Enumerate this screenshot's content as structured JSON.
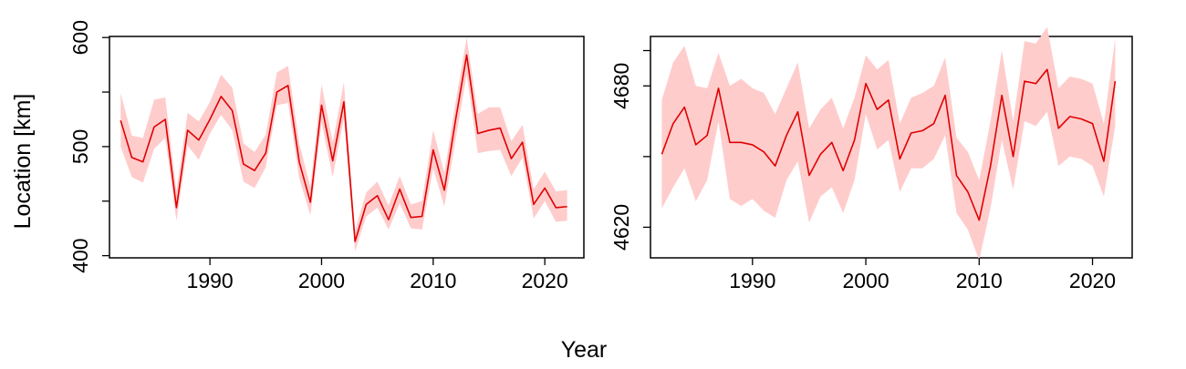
{
  "figure": {
    "xlabel": "Year",
    "ylabel": "Location [km]"
  },
  "chart_data": [
    {
      "type": "line",
      "title": "",
      "xlabel": "Year",
      "ylabel": "Location [km]",
      "xlim": [
        1981,
        2023.5
      ],
      "ylim": [
        398,
        601
      ],
      "x_ticks": [
        1990,
        2000,
        2010,
        2020
      ],
      "x_tick_labels": [
        "1990",
        "2000",
        "2010",
        "2020"
      ],
      "y_ticks": [
        400,
        500,
        600
      ],
      "y_tick_labels": [
        "400",
        "500",
        "600"
      ],
      "y_minor_ticks": [
        450,
        550
      ],
      "grid": false,
      "line_color": "#e00000",
      "band_color": "#ffcccc",
      "series": [
        {
          "x": [
            1982,
            1983,
            1984,
            1985,
            1986,
            1987,
            1988,
            1989,
            1990,
            1991,
            1992,
            1993,
            1994,
            1995,
            1996,
            1997,
            1998,
            1999,
            2000,
            2001,
            2002,
            2003,
            2004,
            2005,
            2006,
            2007,
            2008,
            2009,
            2010,
            2011,
            2012,
            2013,
            2014,
            2015,
            2016,
            2017,
            2018,
            2019,
            2020,
            2021,
            2022
          ],
          "y": [
            524,
            490,
            486,
            518,
            525,
            444,
            515,
            506,
            525,
            546,
            533,
            484,
            478,
            494,
            550,
            556,
            486,
            449,
            538,
            487,
            541,
            413,
            447,
            455,
            433,
            461,
            435,
            436,
            497,
            460,
            524,
            584,
            512,
            515,
            517,
            489,
            504,
            447,
            462,
            444,
            445
          ],
          "lower": [
            500,
            472,
            467,
            498,
            508,
            432,
            501,
            488,
            512,
            529,
            515,
            468,
            462,
            481,
            538,
            540,
            471,
            437,
            522,
            472,
            526,
            404,
            436,
            444,
            424,
            448,
            425,
            424,
            480,
            445,
            506,
            566,
            494,
            496,
            497,
            473,
            490,
            434,
            450,
            431,
            432
          ],
          "upper": [
            549,
            510,
            508,
            543,
            545,
            459,
            531,
            523,
            541,
            566,
            554,
            503,
            495,
            511,
            568,
            574,
            503,
            463,
            557,
            504,
            559,
            423,
            458,
            468,
            446,
            473,
            447,
            450,
            515,
            476,
            540,
            600,
            530,
            536,
            536,
            505,
            520,
            461,
            477,
            459,
            460
          ]
        }
      ]
    },
    {
      "type": "line",
      "title": "",
      "xlabel": "Year",
      "ylabel": "Location [km]",
      "xlim": [
        1981,
        2023.5
      ],
      "ylim": [
        4607,
        4701
      ],
      "x_ticks": [
        1990,
        2000,
        2010,
        2020
      ],
      "x_tick_labels": [
        "1990",
        "2000",
        "2010",
        "2020"
      ],
      "y_ticks": [
        4620,
        4680
      ],
      "y_tick_labels": [
        "4620",
        "4680"
      ],
      "y_minor_ticks": [
        4650,
        4695
      ],
      "grid": false,
      "line_color": "#e00000",
      "band_color": "#ffcccc",
      "series": [
        {
          "x": [
            1982,
            1983,
            1984,
            1985,
            1986,
            1987,
            1988,
            1989,
            1990,
            1991,
            1992,
            1993,
            1994,
            1995,
            1996,
            1997,
            1998,
            1999,
            2000,
            2001,
            2002,
            2003,
            2004,
            2005,
            2006,
            2007,
            2008,
            2009,
            2010,
            2011,
            2012,
            2013,
            2014,
            2015,
            2016,
            2017,
            2018,
            2019,
            2020,
            2021,
            2022
          ],
          "y": [
            4651,
            4664,
            4671,
            4655,
            4659,
            4679,
            4656,
            4656,
            4655,
            4652,
            4646,
            4659,
            4669,
            4642,
            4651,
            4656,
            4644,
            4657,
            4681,
            4670,
            4674,
            4649,
            4660,
            4661,
            4664,
            4676,
            4642,
            4635,
            4623,
            4646,
            4676,
            4650,
            4682,
            4681,
            4687,
            4662,
            4667,
            4666,
            4664,
            4648,
            4682
          ],
          "lower": [
            4628,
            4637,
            4645,
            4631,
            4640,
            4665,
            4632,
            4629,
            4632,
            4627,
            4624,
            4640,
            4648,
            4622,
            4633,
            4637,
            4626,
            4640,
            4668,
            4653,
            4657,
            4635,
            4645,
            4645,
            4649,
            4659,
            4626,
            4619,
            4606,
            4628,
            4657,
            4636,
            4665,
            4663,
            4669,
            4646,
            4650,
            4649,
            4646,
            4633,
            4663
          ],
          "upper": [
            4674,
            4690,
            4697,
            4680,
            4679,
            4694,
            4680,
            4683,
            4679,
            4677,
            4668,
            4679,
            4690,
            4662,
            4670,
            4675,
            4662,
            4675,
            4693,
            4687,
            4691,
            4664,
            4675,
            4677,
            4680,
            4692,
            4658,
            4652,
            4640,
            4665,
            4695,
            4665,
            4699,
            4698,
            4705,
            4679,
            4684,
            4683,
            4681,
            4664,
            4700
          ]
        }
      ]
    }
  ]
}
